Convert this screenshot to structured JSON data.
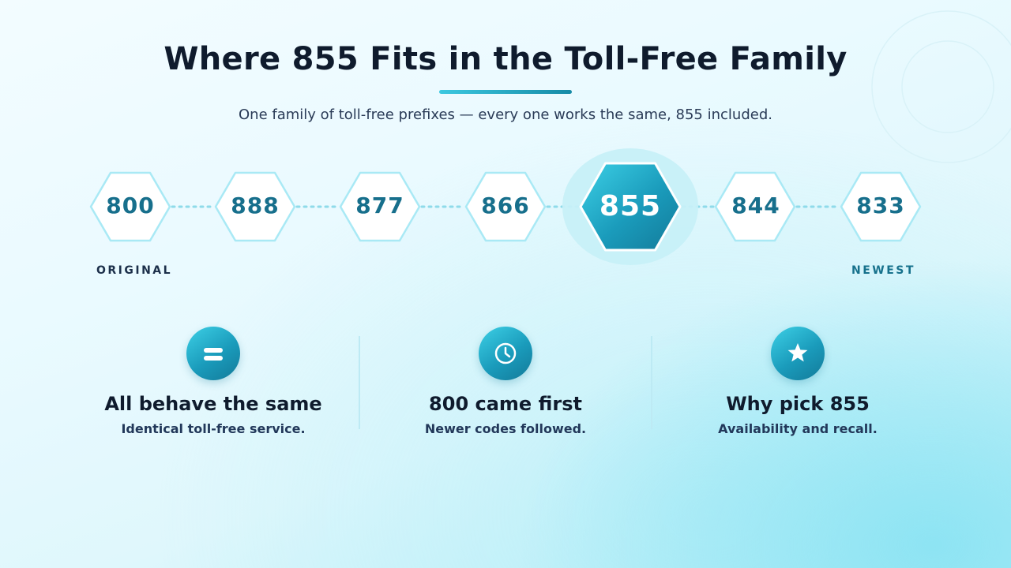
{
  "header": {
    "title": "Where 855 Fits in the Toll-Free Family",
    "subtitle": "One family of toll-free prefixes — every one works the same, 855 included."
  },
  "timeline": {
    "codes": [
      "800",
      "888",
      "877",
      "866",
      "855",
      "844",
      "833"
    ],
    "highlighted": "855",
    "start_label": "ORIGINAL",
    "end_label": "NEWEST"
  },
  "features": [
    {
      "icon": "equals-icon",
      "title": "All behave the same",
      "description": "Identical toll-free service."
    },
    {
      "icon": "clock-icon",
      "title": "800 came first",
      "description": "Newer codes followed."
    },
    {
      "icon": "star-icon",
      "title": "Why pick 855",
      "description": "Availability and recall."
    }
  ],
  "colors": {
    "title": "#0f1b2d",
    "accent": "#1a9bbb",
    "accent_light": "#3dd0e6",
    "hex_text": "#176f8c",
    "hex_border": "#a9e9f5"
  }
}
